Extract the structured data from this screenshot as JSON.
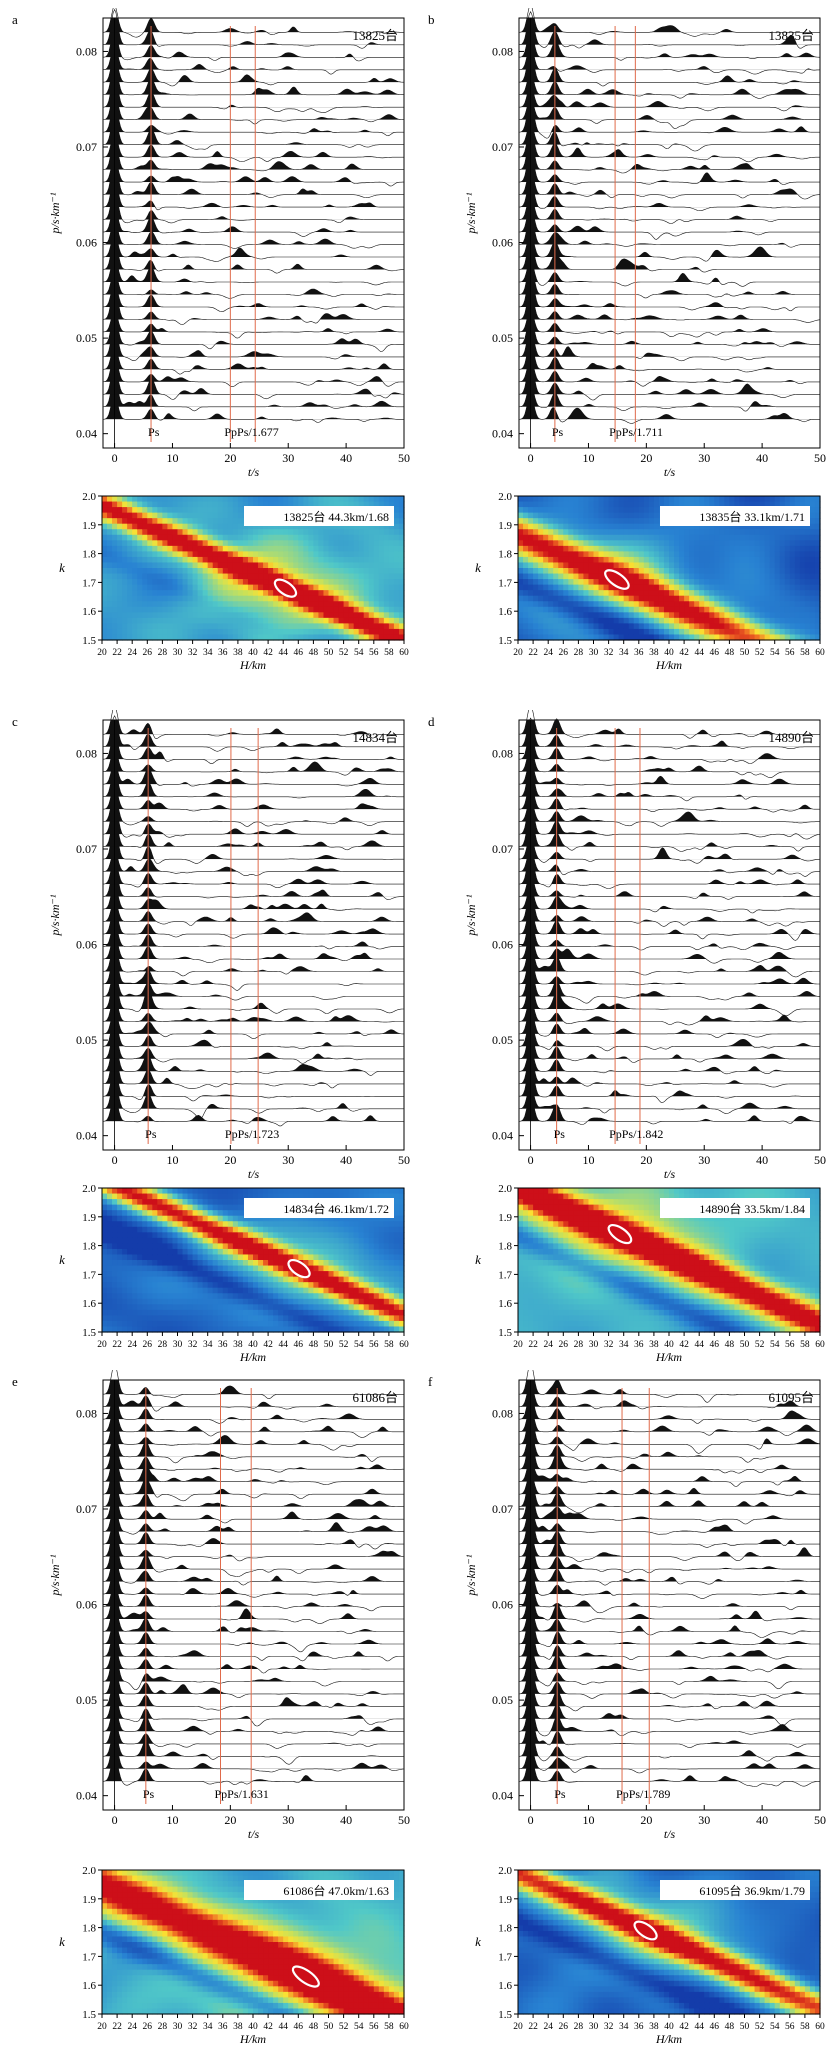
{
  "panels": [
    {
      "letter": "a",
      "station": "13825台",
      "pp_label": "PpPs/1.677",
      "ps_t": 6.3,
      "pps_t": 20.0,
      "ppss_t": 24.3,
      "ytick_labels": [
        "0.08",
        "0.07",
        "0.06",
        "0.05",
        "0.04"
      ],
      "xtick_labels": [
        "0",
        "10",
        "20",
        "30",
        "40",
        "50"
      ],
      "ylabel": "p/s·km⁻¹",
      "xlabel": "t/s",
      "ps_label": "Ps",
      "heatmap": {
        "label": "13825台 44.3km/1.68",
        "H": 44.3,
        "k": 1.68,
        "band": 0.7,
        "theme": "green",
        "xtick_labels": [
          "20",
          "22",
          "24",
          "26",
          "28",
          "30",
          "32",
          "34",
          "36",
          "38",
          "40",
          "42",
          "44",
          "46",
          "48",
          "50",
          "52",
          "54",
          "56",
          "58",
          "60"
        ],
        "ytick_labels": [
          "2.0",
          "1.9",
          "1.8",
          "1.7",
          "1.6",
          "1.5"
        ],
        "xlabel": "H/km",
        "ylabel": "k"
      }
    },
    {
      "letter": "b",
      "station": "13835台",
      "pp_label": "PpPs/1.711",
      "ps_t": 4.2,
      "pps_t": 14.6,
      "ppss_t": 18.1,
      "ytick_labels": [
        "0.08",
        "0.07",
        "0.06",
        "0.05",
        "0.04"
      ],
      "xtick_labels": [
        "0",
        "10",
        "20",
        "30",
        "40",
        "50"
      ],
      "ylabel": "p/s·km⁻¹",
      "xlabel": "t/s",
      "ps_label": "Ps",
      "heatmap": {
        "label": "13835台 33.1km/1.71",
        "H": 33.1,
        "k": 1.71,
        "band": 0.95,
        "theme": "blue",
        "xtick_labels": [
          "20",
          "22",
          "24",
          "26",
          "28",
          "30",
          "32",
          "34",
          "36",
          "38",
          "40",
          "42",
          "44",
          "46",
          "48",
          "50",
          "52",
          "54",
          "56",
          "58",
          "60"
        ],
        "ytick_labels": [
          "2.0",
          "1.9",
          "1.8",
          "1.7",
          "1.6",
          "1.5"
        ],
        "xlabel": "H/km",
        "ylabel": "k"
      }
    },
    {
      "letter": "c",
      "station": "14834台",
      "pp_label": "PpPs/1.723",
      "ps_t": 5.8,
      "pps_t": 20.1,
      "ppss_t": 24.8,
      "ytick_labels": [
        "0.08",
        "0.07",
        "0.06",
        "0.05",
        "0.04"
      ],
      "xtick_labels": [
        "0",
        "10",
        "20",
        "30",
        "40",
        "50"
      ],
      "ylabel": "p/s·km⁻¹",
      "xlabel": "t/s",
      "ps_label": "Ps",
      "heatmap": {
        "label": "14834台 46.1km/1.72",
        "H": 46.1,
        "k": 1.72,
        "band": 0.7,
        "theme": "blue",
        "xtick_labels": [
          "20",
          "22",
          "24",
          "26",
          "28",
          "30",
          "32",
          "34",
          "36",
          "38",
          "40",
          "42",
          "44",
          "46",
          "48",
          "50",
          "52",
          "54",
          "56",
          "58",
          "60"
        ],
        "ytick_labels": [
          "2.0",
          "1.9",
          "1.8",
          "1.7",
          "1.6",
          "1.5"
        ],
        "xlabel": "H/km",
        "ylabel": "k"
      }
    },
    {
      "letter": "d",
      "station": "14890台",
      "pp_label": "PpPs/1.842",
      "ps_t": 4.5,
      "pps_t": 14.6,
      "ppss_t": 18.9,
      "ytick_labels": [
        "0.08",
        "0.07",
        "0.06",
        "0.05",
        "0.04"
      ],
      "xtick_labels": [
        "0",
        "10",
        "20",
        "30",
        "40",
        "50"
      ],
      "ylabel": "p/s·km⁻¹",
      "xlabel": "t/s",
      "ps_label": "Ps",
      "heatmap": {
        "label": "14890台 33.5km/1.84",
        "H": 33.5,
        "k": 1.84,
        "band": 0.85,
        "theme": "yellow",
        "xtick_labels": [
          "20",
          "22",
          "24",
          "26",
          "28",
          "30",
          "32",
          "34",
          "36",
          "38",
          "40",
          "42",
          "44",
          "46",
          "48",
          "50",
          "52",
          "54",
          "56",
          "58",
          "60"
        ],
        "ytick_labels": [
          "2.0",
          "1.9",
          "1.8",
          "1.7",
          "1.6",
          "1.5"
        ],
        "xlabel": "H/km",
        "ylabel": "k"
      }
    },
    {
      "letter": "e",
      "station": "61086台",
      "pp_label": "PpPs/1.631",
      "ps_t": 5.4,
      "pps_t": 18.3,
      "ppss_t": 23.6,
      "ytick_labels": [
        "0.08",
        "0.07",
        "0.06",
        "0.05",
        "0.04"
      ],
      "xtick_labels": [
        "0",
        "10",
        "20",
        "30",
        "40",
        "50"
      ],
      "ylabel": "p/s·km⁻¹",
      "xlabel": "t/s",
      "ps_label": "Ps",
      "heatmap": {
        "label": "61086台 47.0km/1.63",
        "H": 47.0,
        "k": 1.63,
        "band": 1.2,
        "theme": "yellow",
        "xtick_labels": [
          "20",
          "22",
          "24",
          "26",
          "28",
          "30",
          "32",
          "34",
          "36",
          "38",
          "40",
          "42",
          "44",
          "46",
          "48",
          "50",
          "52",
          "54",
          "56",
          "58",
          "60"
        ],
        "ytick_labels": [
          "2.0",
          "1.9",
          "1.8",
          "1.7",
          "1.6",
          "1.5"
        ],
        "xlabel": "H/km",
        "ylabel": "k"
      }
    },
    {
      "letter": "f",
      "station": "61095台",
      "pp_label": "PpPs/1.789",
      "ps_t": 4.6,
      "pps_t": 15.8,
      "ppss_t": 20.5,
      "ytick_labels": [
        "0.08",
        "0.07",
        "0.06",
        "0.05",
        "0.04"
      ],
      "xtick_labels": [
        "0",
        "10",
        "20",
        "30",
        "40",
        "50"
      ],
      "ylabel": "p/s·km⁻¹",
      "xlabel": "t/s",
      "ps_label": "Ps",
      "heatmap": {
        "label": "61095台 36.9km/1.79",
        "H": 36.9,
        "k": 1.79,
        "band": 0.8,
        "theme": "blue",
        "xtick_labels": [
          "20",
          "22",
          "24",
          "26",
          "28",
          "30",
          "32",
          "34",
          "36",
          "38",
          "40",
          "42",
          "44",
          "46",
          "48",
          "50",
          "52",
          "54",
          "56",
          "58",
          "60"
        ],
        "ytick_labels": [
          "2.0",
          "1.9",
          "1.8",
          "1.7",
          "1.6",
          "1.5"
        ],
        "xlabel": "H/km",
        "ylabel": "k"
      }
    }
  ],
  "colors": {
    "phase_line": "#e06a4a",
    "trace": "#111111",
    "ellipse": "#ffffff"
  }
}
